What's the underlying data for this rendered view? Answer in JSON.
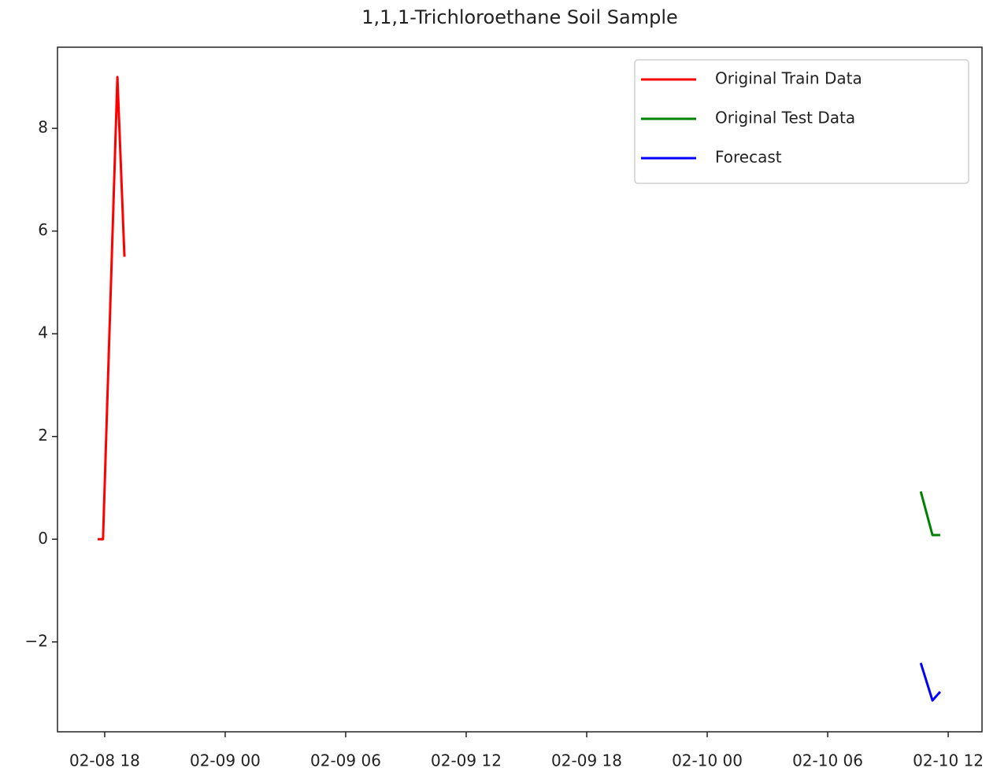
{
  "chart_data": {
    "type": "line",
    "title": "1,1,1-Trichloroethane Soil Sample",
    "xlim": [
      "02-08 15:39",
      "02-10 13:41"
    ],
    "xticks": [
      {
        "value": "02-08 18:00",
        "label": "02-08 18"
      },
      {
        "value": "02-09 00:00",
        "label": "02-09 00"
      },
      {
        "value": "02-09 06:00",
        "label": "02-09 06"
      },
      {
        "value": "02-09 12:00",
        "label": "02-09 12"
      },
      {
        "value": "02-09 18:00",
        "label": "02-09 18"
      },
      {
        "value": "02-10 00:00",
        "label": "02-10 00"
      },
      {
        "value": "02-10 06:00",
        "label": "02-10 06"
      },
      {
        "value": "02-10 12:00",
        "label": "02-10 12"
      }
    ],
    "ylim": [
      -3.75,
      9.58
    ],
    "yticks": [
      {
        "value": -2,
        "label": "−2"
      },
      0,
      2,
      4,
      6,
      8
    ],
    "grid": false,
    "legend": "upper right",
    "series": [
      {
        "name": "Original Train Data",
        "color": "#ff0000",
        "x": [
          "02-08 17:39",
          "02-08 17:55",
          "02-08 18:38",
          "02-08 18:59"
        ],
        "values": [
          0,
          0,
          9,
          5.5
        ]
      },
      {
        "name": "Original Test Data",
        "color": "#008000",
        "x": [
          "02-10 10:38",
          "02-10 11:13",
          "02-10 11:36"
        ],
        "values": [
          0.93,
          0.08,
          0.08
        ]
      },
      {
        "name": "Forecast",
        "color": "#0000ff",
        "x": [
          "02-10 10:38",
          "02-10 11:13",
          "02-10 11:36"
        ],
        "values": [
          -2.41,
          -3.14,
          -2.97
        ]
      }
    ]
  }
}
